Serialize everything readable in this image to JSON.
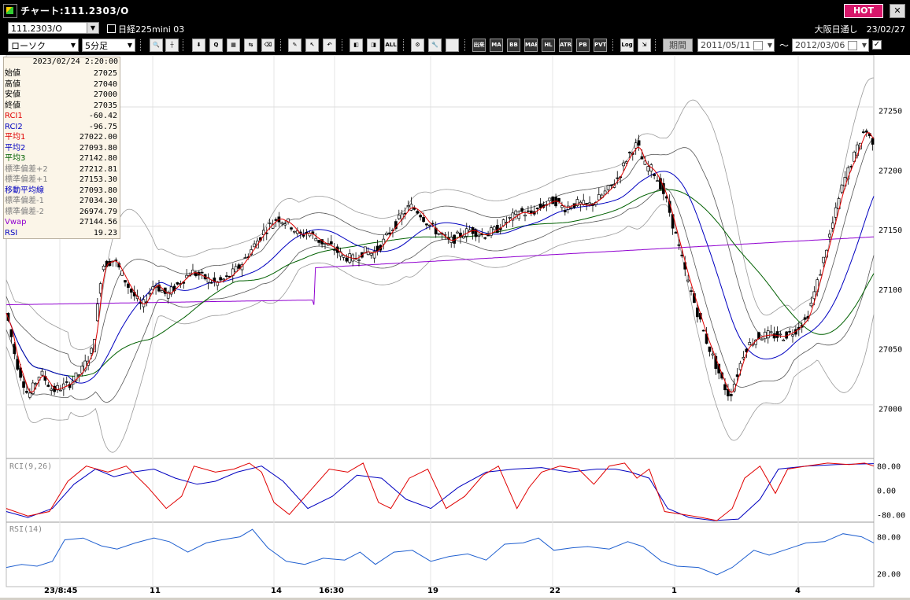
{
  "window": {
    "title": "チャート:111.2303/O",
    "hot_label": "HOT",
    "close_label": "✕"
  },
  "symbol_bar": {
    "symbol_value": "111.2303/O",
    "instrument_name": "日経225mini 03",
    "market_info": "大阪日通し　23/02/27"
  },
  "toolbar": {
    "chart_type": "ローソク",
    "interval": "5分足",
    "tool_icons": [
      "zoom-icon",
      "grid-icon",
      "tool-icon",
      "tool-icon",
      "tool-icon",
      "tool-icon",
      "tool-icon",
      "tool-icon",
      "tool-icon",
      "tool-icon",
      "tool-icon",
      "tool-icon",
      "tool-icon",
      "tool-icon",
      "tool-icon",
      "tool-icon"
    ],
    "indicator_buttons": [
      "出来",
      "MA",
      "BB",
      "MAE",
      "HL",
      "ATR",
      "PB",
      "PVT"
    ],
    "all_label": "ALL",
    "log_label": "Log",
    "period_button": "期間",
    "date_from": "2011/05/11",
    "date_separator": "～",
    "date_to": "2012/03/06"
  },
  "info_panel": {
    "datetime": "2023/02/24  2:20:00",
    "rows": [
      {
        "label": "始値",
        "value": "27025",
        "color": "#000000"
      },
      {
        "label": "高値",
        "value": "27040",
        "color": "#000000"
      },
      {
        "label": "安値",
        "value": "27000",
        "color": "#000000"
      },
      {
        "label": "終値",
        "value": "27035",
        "color": "#000000"
      },
      {
        "label": "RCI1",
        "value": "-60.42",
        "color": "#e00000"
      },
      {
        "label": "RCI2",
        "value": "-96.75",
        "color": "#0000c0"
      },
      {
        "label": "平均1",
        "value": "27022.00",
        "color": "#e00000"
      },
      {
        "label": "平均2",
        "value": "27093.80",
        "color": "#0000c0"
      },
      {
        "label": "平均3",
        "value": "27142.80",
        "color": "#006000"
      },
      {
        "label": "標準偏差+2",
        "value": "27212.81",
        "color": "#808080"
      },
      {
        "label": "標準偏差+1",
        "value": "27153.30",
        "color": "#808080"
      },
      {
        "label": "移動平均線",
        "value": "27093.80",
        "color": "#0000c0"
      },
      {
        "label": "標準偏差-1",
        "value": "27034.30",
        "color": "#808080"
      },
      {
        "label": "標準偏差-2",
        "value": "26974.79",
        "color": "#808080"
      },
      {
        "label": "Vwap",
        "value": "27144.56",
        "color": "#9000d0"
      },
      {
        "label": "RSI",
        "value": "19.23",
        "color": "#0000c0"
      }
    ]
  },
  "panels": {
    "rci_label": "RCI(9,26)",
    "rsi_label": "RSI(14)"
  },
  "x_labels": [
    {
      "text": "23/8:45",
      "x": 56
    },
    {
      "text": "11",
      "x": 190
    },
    {
      "text": "14",
      "x": 344
    },
    {
      "text": "16:30",
      "x": 405
    },
    {
      "text": "19",
      "x": 543
    },
    {
      "text": "22",
      "x": 698
    },
    {
      "text": "1",
      "x": 853
    },
    {
      "text": "4",
      "x": 1010
    }
  ],
  "chart_data": {
    "type": "candlestick",
    "price_axis": {
      "ticks": [
        27000,
        27050,
        27100,
        27150,
        27200,
        27250
      ],
      "range": [
        26960,
        27290
      ]
    },
    "rci_axis": {
      "ticks": [
        "80.00",
        "0.00",
        "-80.00"
      ],
      "range": [
        -100,
        100
      ]
    },
    "rsi_axis": {
      "ticks": [
        "80.00",
        "20.00"
      ],
      "range": [
        0,
        100
      ]
    },
    "series": [
      {
        "name": "平均1",
        "color": "#e00000"
      },
      {
        "name": "平均2",
        "color": "#0000c0"
      },
      {
        "name": "平均3",
        "color": "#006000"
      },
      {
        "name": "Vwap",
        "color": "#9000d0"
      },
      {
        "name": "RCI1",
        "color": "#e00000"
      },
      {
        "name": "RCI2",
        "color": "#0000c0"
      },
      {
        "name": "RSI",
        "color": "#2060d0"
      }
    ],
    "trend_path": [
      [
        0,
        27080
      ],
      [
        6,
        27040
      ],
      [
        14,
        27010
      ],
      [
        22,
        27030
      ],
      [
        30,
        27015
      ],
      [
        40,
        27020
      ],
      [
        48,
        27030
      ],
      [
        56,
        27050
      ],
      [
        62,
        27120
      ],
      [
        70,
        27125
      ],
      [
        80,
        27100
      ],
      [
        88,
        27085
      ],
      [
        96,
        27105
      ],
      [
        104,
        27095
      ],
      [
        112,
        27105
      ],
      [
        120,
        27115
      ],
      [
        128,
        27110
      ],
      [
        136,
        27105
      ],
      [
        144,
        27110
      ],
      [
        152,
        27120
      ],
      [
        160,
        27135
      ],
      [
        168,
        27150
      ],
      [
        176,
        27160
      ],
      [
        184,
        27155
      ],
      [
        190,
        27145
      ],
      [
        196,
        27148
      ],
      [
        204,
        27140
      ],
      [
        212,
        27135
      ],
      [
        218,
        27128
      ],
      [
        226,
        27125
      ],
      [
        232,
        27132
      ],
      [
        238,
        27130
      ],
      [
        244,
        27138
      ],
      [
        250,
        27150
      ],
      [
        256,
        27160
      ],
      [
        262,
        27170
      ],
      [
        268,
        27165
      ],
      [
        274,
        27155
      ],
      [
        280,
        27148
      ],
      [
        288,
        27140
      ],
      [
        294,
        27145
      ],
      [
        302,
        27150
      ],
      [
        310,
        27145
      ],
      [
        318,
        27150
      ],
      [
        326,
        27158
      ],
      [
        334,
        27165
      ],
      [
        340,
        27163
      ],
      [
        348,
        27170
      ],
      [
        356,
        27175
      ],
      [
        362,
        27168
      ],
      [
        370,
        27172
      ],
      [
        378,
        27170
      ],
      [
        384,
        27175
      ],
      [
        392,
        27185
      ],
      [
        398,
        27195
      ],
      [
        404,
        27212
      ],
      [
        410,
        27222
      ],
      [
        414,
        27205
      ],
      [
        420,
        27200
      ],
      [
        426,
        27185
      ],
      [
        430,
        27170
      ],
      [
        436,
        27140
      ],
      [
        442,
        27110
      ],
      [
        448,
        27085
      ],
      [
        454,
        27060
      ],
      [
        460,
        27040
      ],
      [
        466,
        27020
      ],
      [
        470,
        27010
      ],
      [
        474,
        27025
      ],
      [
        480,
        27050
      ],
      [
        488,
        27060
      ],
      [
        496,
        27062
      ],
      [
        504,
        27060
      ],
      [
        512,
        27065
      ],
      [
        520,
        27075
      ],
      [
        528,
        27110
      ],
      [
        536,
        27150
      ],
      [
        544,
        27190
      ],
      [
        552,
        27215
      ],
      [
        558,
        27235
      ],
      [
        562,
        27225
      ]
    ],
    "rci1_path": [
      [
        0,
        -60
      ],
      [
        14,
        -85
      ],
      [
        28,
        -70
      ],
      [
        40,
        30
      ],
      [
        52,
        80
      ],
      [
        66,
        60
      ],
      [
        78,
        80
      ],
      [
        92,
        10
      ],
      [
        104,
        -60
      ],
      [
        114,
        -20
      ],
      [
        122,
        80
      ],
      [
        136,
        60
      ],
      [
        148,
        70
      ],
      [
        158,
        90
      ],
      [
        166,
        60
      ],
      [
        174,
        -40
      ],
      [
        184,
        -80
      ],
      [
        196,
        -10
      ],
      [
        210,
        70
      ],
      [
        222,
        60
      ],
      [
        232,
        90
      ],
      [
        242,
        -40
      ],
      [
        250,
        -60
      ],
      [
        262,
        40
      ],
      [
        274,
        70
      ],
      [
        286,
        -60
      ],
      [
        298,
        -20
      ],
      [
        310,
        50
      ],
      [
        320,
        80
      ],
      [
        332,
        -60
      ],
      [
        340,
        10
      ],
      [
        348,
        60
      ],
      [
        360,
        80
      ],
      [
        372,
        70
      ],
      [
        382,
        20
      ],
      [
        392,
        80
      ],
      [
        402,
        90
      ],
      [
        410,
        40
      ],
      [
        418,
        70
      ],
      [
        428,
        -70
      ],
      [
        440,
        -80
      ],
      [
        452,
        -90
      ],
      [
        462,
        -100
      ],
      [
        472,
        -60
      ],
      [
        480,
        40
      ],
      [
        490,
        80
      ],
      [
        500,
        -10
      ],
      [
        508,
        70
      ],
      [
        520,
        80
      ],
      [
        534,
        90
      ],
      [
        548,
        85
      ],
      [
        558,
        90
      ],
      [
        564,
        80
      ]
    ],
    "rci2_path": [
      [
        0,
        -70
      ],
      [
        14,
        -90
      ],
      [
        30,
        -60
      ],
      [
        44,
        20
      ],
      [
        58,
        70
      ],
      [
        70,
        45
      ],
      [
        82,
        60
      ],
      [
        96,
        70
      ],
      [
        110,
        40
      ],
      [
        124,
        20
      ],
      [
        136,
        30
      ],
      [
        150,
        60
      ],
      [
        166,
        80
      ],
      [
        180,
        30
      ],
      [
        196,
        -60
      ],
      [
        212,
        -20
      ],
      [
        228,
        50
      ],
      [
        244,
        40
      ],
      [
        260,
        -30
      ],
      [
        276,
        -60
      ],
      [
        294,
        10
      ],
      [
        312,
        60
      ],
      [
        330,
        70
      ],
      [
        348,
        75
      ],
      [
        366,
        60
      ],
      [
        384,
        70
      ],
      [
        396,
        70
      ],
      [
        406,
        60
      ],
      [
        418,
        40
      ],
      [
        430,
        -60
      ],
      [
        444,
        -90
      ],
      [
        460,
        -100
      ],
      [
        476,
        -95
      ],
      [
        490,
        -30
      ],
      [
        502,
        70
      ],
      [
        520,
        80
      ],
      [
        540,
        85
      ],
      [
        564,
        88
      ]
    ],
    "rsi_path": [
      [
        0,
        30
      ],
      [
        10,
        35
      ],
      [
        20,
        32
      ],
      [
        30,
        40
      ],
      [
        38,
        75
      ],
      [
        50,
        78
      ],
      [
        62,
        65
      ],
      [
        72,
        60
      ],
      [
        84,
        70
      ],
      [
        96,
        78
      ],
      [
        106,
        72
      ],
      [
        118,
        55
      ],
      [
        130,
        70
      ],
      [
        140,
        75
      ],
      [
        152,
        80
      ],
      [
        160,
        92
      ],
      [
        170,
        62
      ],
      [
        182,
        40
      ],
      [
        194,
        35
      ],
      [
        206,
        45
      ],
      [
        220,
        42
      ],
      [
        230,
        55
      ],
      [
        240,
        35
      ],
      [
        252,
        55
      ],
      [
        264,
        58
      ],
      [
        276,
        40
      ],
      [
        288,
        48
      ],
      [
        300,
        52
      ],
      [
        312,
        42
      ],
      [
        324,
        68
      ],
      [
        336,
        70
      ],
      [
        346,
        78
      ],
      [
        356,
        58
      ],
      [
        368,
        62
      ],
      [
        378,
        64
      ],
      [
        392,
        60
      ],
      [
        404,
        72
      ],
      [
        414,
        64
      ],
      [
        426,
        40
      ],
      [
        436,
        32
      ],
      [
        450,
        30
      ],
      [
        462,
        18
      ],
      [
        472,
        30
      ],
      [
        486,
        58
      ],
      [
        496,
        50
      ],
      [
        508,
        60
      ],
      [
        520,
        70
      ],
      [
        532,
        72
      ],
      [
        544,
        85
      ],
      [
        556,
        80
      ],
      [
        564,
        70
      ]
    ]
  }
}
